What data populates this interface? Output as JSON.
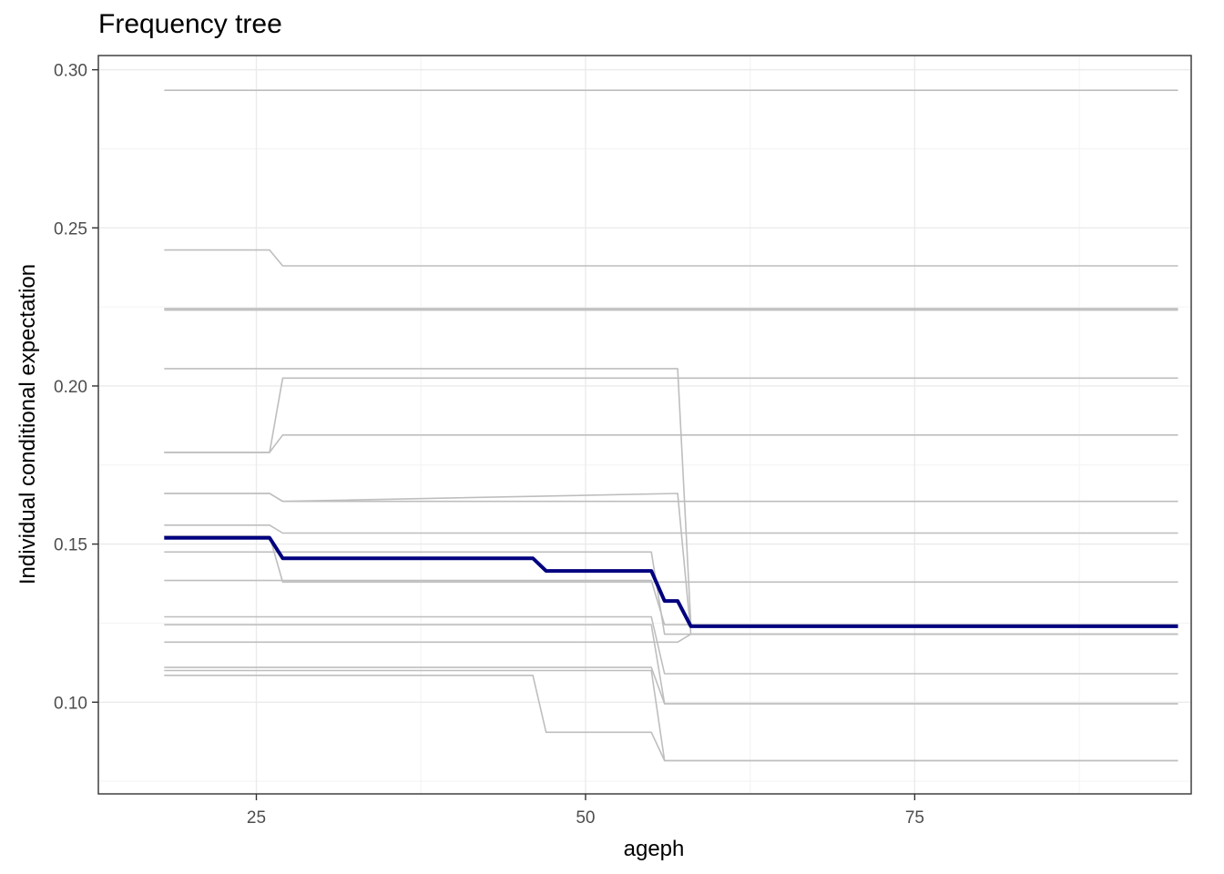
{
  "chart_data": {
    "type": "line",
    "title": "Frequency tree",
    "xlabel": "ageph",
    "ylabel": "Individual conditional expectation",
    "xlim": [
      13,
      96
    ],
    "ylim": [
      0.071,
      0.3045
    ],
    "x_ticks": [
      25,
      50,
      75
    ],
    "x_tick_labels": [
      "25",
      "50",
      "75"
    ],
    "y_ticks": [
      0.1,
      0.15,
      0.2,
      0.25,
      0.3
    ],
    "y_tick_labels": [
      "0.10",
      "0.15",
      "0.20",
      "0.25",
      "0.30"
    ],
    "grid": true,
    "colors": {
      "ice": "#bebebe",
      "pdp": "#00007f",
      "grid_major": "#ebebeb",
      "grid_minor": "#f4f4f4",
      "panel_border": "#333333"
    },
    "ice_series": [
      {
        "x": [
          18,
          95
        ],
        "y": [
          0.2935,
          0.2935
        ]
      },
      {
        "x": [
          18,
          26,
          27,
          95
        ],
        "y": [
          0.243,
          0.243,
          0.238,
          0.238
        ]
      },
      {
        "x": [
          18,
          26,
          27,
          95
        ],
        "y": [
          0.2245,
          0.2245,
          0.2245,
          0.2245
        ]
      },
      {
        "x": [
          18,
          95
        ],
        "y": [
          0.224,
          0.224
        ]
      },
      {
        "x": [
          18,
          26,
          27,
          95
        ],
        "y": [
          0.179,
          0.179,
          0.2025,
          0.2025
        ]
      },
      {
        "x": [
          18,
          26,
          27,
          95
        ],
        "y": [
          0.179,
          0.179,
          0.1845,
          0.1845
        ]
      },
      {
        "x": [
          18,
          57,
          58,
          95
        ],
        "y": [
          0.2055,
          0.2055,
          0.1245,
          0.1245
        ]
      },
      {
        "x": [
          18,
          26,
          27,
          57,
          58,
          95
        ],
        "y": [
          0.166,
          0.166,
          0.1635,
          0.1635,
          0.1635,
          0.1635
        ]
      },
      {
        "x": [
          18,
          26,
          27,
          57,
          58,
          95
        ],
        "y": [
          0.166,
          0.166,
          0.1635,
          0.166,
          0.1215,
          0.1215
        ]
      },
      {
        "x": [
          18,
          26,
          27,
          95
        ],
        "y": [
          0.156,
          0.156,
          0.1535,
          0.1535
        ]
      },
      {
        "x": [
          18,
          26,
          27,
          55,
          56,
          95
        ],
        "y": [
          0.1525,
          0.1525,
          0.138,
          0.138,
          0.138,
          0.138
        ]
      },
      {
        "x": [
          18,
          55,
          56,
          57,
          58,
          95
        ],
        "y": [
          0.1475,
          0.1475,
          0.1215,
          0.1215,
          0.1215,
          0.1215
        ]
      },
      {
        "x": [
          18,
          46,
          47,
          55,
          56,
          95
        ],
        "y": [
          0.1385,
          0.1385,
          0.1385,
          0.1385,
          0.1245,
          0.1245
        ]
      },
      {
        "x": [
          18,
          55,
          56,
          95
        ],
        "y": [
          0.127,
          0.127,
          0.109,
          0.109
        ]
      },
      {
        "x": [
          18,
          55,
          56,
          95
        ],
        "y": [
          0.1245,
          0.1245,
          0.0995,
          0.0995
        ]
      },
      {
        "x": [
          18,
          55,
          56,
          57,
          58,
          95
        ],
        "y": [
          0.119,
          0.119,
          0.119,
          0.119,
          0.1215,
          0.1215
        ]
      },
      {
        "x": [
          18,
          55,
          56,
          95
        ],
        "y": [
          0.111,
          0.111,
          0.0995,
          0.0995
        ]
      },
      {
        "x": [
          18,
          55,
          56,
          95
        ],
        "y": [
          0.11,
          0.11,
          0.0815,
          0.0815
        ]
      },
      {
        "x": [
          18,
          46,
          47,
          55,
          56,
          95
        ],
        "y": [
          0.1085,
          0.1085,
          0.0905,
          0.0905,
          0.0815,
          0.0815
        ]
      }
    ],
    "series": [
      {
        "x": [
          18,
          26,
          27,
          46,
          47,
          55,
          56,
          57,
          58,
          95
        ],
        "y": [
          0.152,
          0.152,
          0.1455,
          0.1455,
          0.1415,
          0.1415,
          0.132,
          0.132,
          0.124,
          0.124
        ]
      }
    ]
  }
}
